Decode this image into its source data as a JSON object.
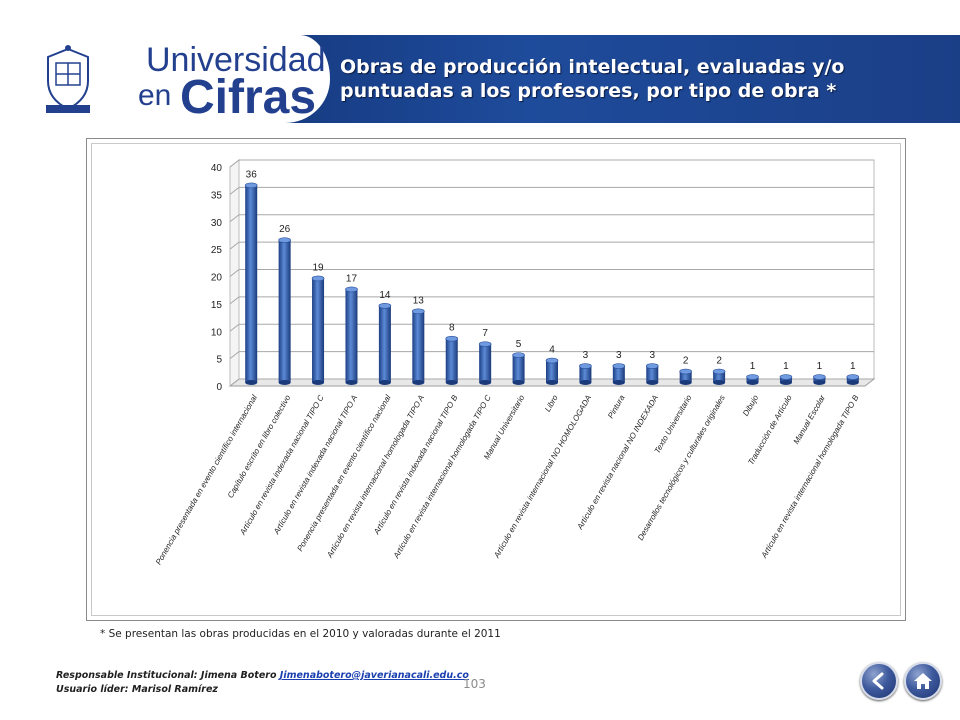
{
  "header": {
    "brand_line1": "Universidad",
    "brand_en": "en",
    "brand_cifras": "Cifras",
    "title": "Obras de producción intelectual, evaluadas y/o puntuadas a los profesores, por tipo de obra *"
  },
  "chart_data": {
    "type": "bar",
    "categories": [
      "Ponencia presentada en evento científico internacional",
      "Capítulo escrito en libro colectivo",
      "Artículo en revista indexada nacional TIPO C",
      "Artículo en revista indexada nacional TIPO A",
      "Ponencia presentada en evento científico nacional",
      "Artículo en revista internacional homologada TIPO A",
      "Artículo en revista indexada nacional TIPO B",
      "Artículo en revista internacional homologada TIPO C",
      "Manual Universitario",
      "Libro",
      "Artículo en revista internacional NO HOMOLOGADA",
      "Pintura",
      "Artículo en revista nacional NO INDEXADA",
      "Texto Universitario",
      "Desarrollos tecnológicos y culturales originales",
      "Dibujo",
      "Traducción de Artículo",
      "Manual Escolar",
      "Artículo en revista internacional homologada TIPO B"
    ],
    "values": [
      36,
      26,
      19,
      17,
      14,
      13,
      8,
      7,
      5,
      4,
      3,
      3,
      3,
      2,
      2,
      1,
      1,
      1,
      1
    ],
    "title": "",
    "xlabel": "",
    "ylabel": "",
    "ylim": [
      0,
      40
    ],
    "yticks": [
      0,
      5,
      10,
      15,
      20,
      25,
      30,
      35,
      40
    ],
    "grid": true,
    "legend": "none",
    "bar_color": "#2f5faf"
  },
  "footnote": "* Se presentan las obras producidas en el 2010 y valoradas durante el 2011",
  "footer": {
    "responsible_label": "Responsable Institucional:  Jimena Botero ",
    "responsible_email": "Jimenabotero@javerianacali.edu.co",
    "user_label": "Usuario líder: Marisol Ramírez",
    "page_number": "103"
  },
  "icons": {
    "back": "back-arrow-icon",
    "home": "home-icon"
  }
}
